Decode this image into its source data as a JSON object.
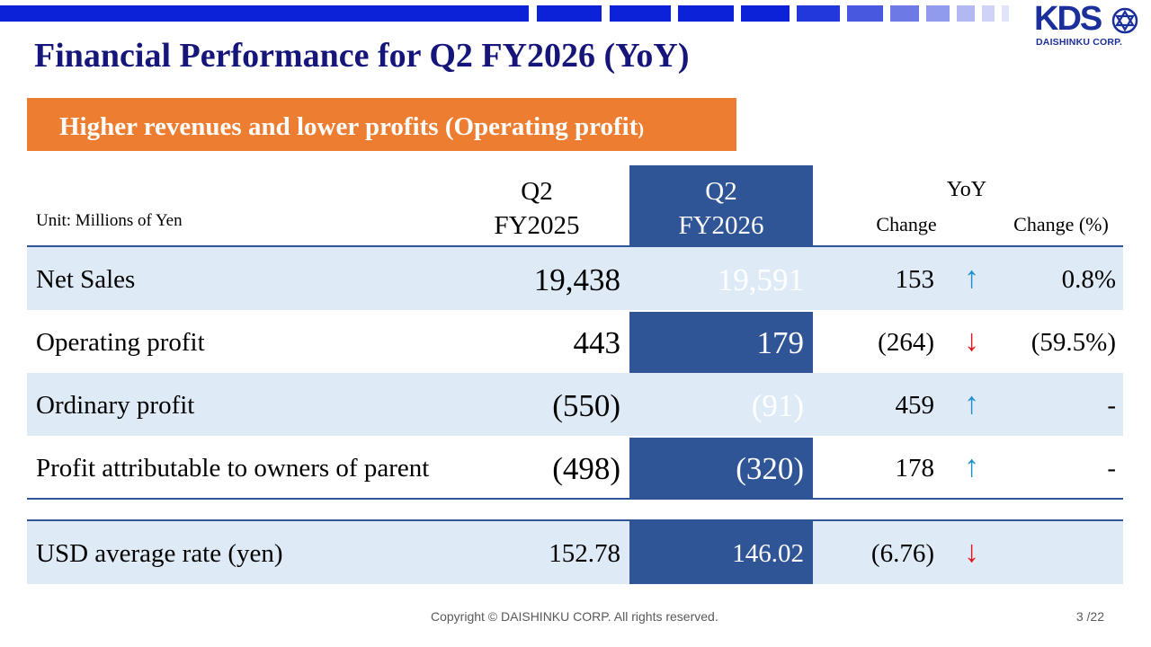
{
  "brand": {
    "logo_text": "KDS",
    "logo_subtext": "DAISHINKU CORP.",
    "color": "#1b2f9b"
  },
  "title": "Financial Performance for Q2 FY2026 (YoY)",
  "banner": {
    "text": "Higher revenues and lower profits (Operating profit",
    "suffix": ")",
    "color": "#ed7d31"
  },
  "table": {
    "unit": "Unit: Millions of Yen",
    "col_prev_line1": "Q2",
    "col_prev_line2": "FY2025",
    "col_curr_line1": "Q2",
    "col_curr_line2": "FY2026",
    "col_yoy": "YoY",
    "col_change": "Change",
    "col_change_pct": "Change (%)",
    "highlight_color": "#2f5597",
    "rows": [
      {
        "label": "Net Sales",
        "prev": "19,438",
        "curr": "19,591",
        "change": "153",
        "arrow": "↑",
        "direction": "up",
        "pct": "0.8%"
      },
      {
        "label": "Operating profit",
        "prev": "443",
        "curr": "179",
        "change": "(264)",
        "arrow": "↓",
        "direction": "down",
        "pct": "(59.5%)"
      },
      {
        "label": "Ordinary profit",
        "prev": "(550)",
        "curr": "(91)",
        "change": "459",
        "arrow": "↑",
        "direction": "up",
        "pct": "-"
      },
      {
        "label": "Profit attributable to owners of parent",
        "prev": "(498)",
        "curr": "(320)",
        "change": "178",
        "arrow": "↑",
        "direction": "up",
        "pct": "-"
      }
    ],
    "rate_row": {
      "label": "USD average rate (yen)",
      "prev": "152.78",
      "curr": "146.02",
      "change": "(6.76)",
      "arrow": "↓",
      "direction": "down",
      "pct": ""
    }
  },
  "footer": {
    "copyright": "Copyright © DAISHINKU CORP. All rights reserved.",
    "page": "3 /22"
  }
}
